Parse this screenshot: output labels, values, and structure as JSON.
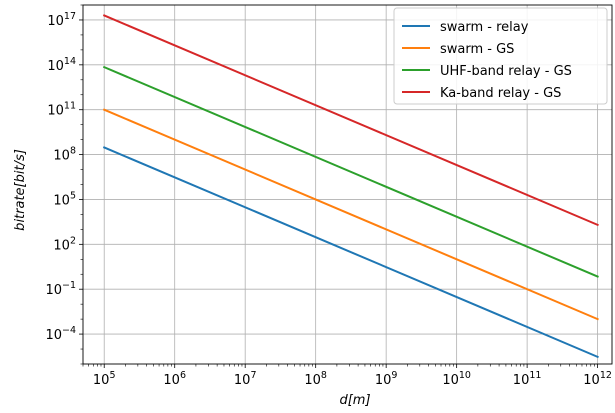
{
  "chart_data": {
    "type": "line",
    "x_scale": "log",
    "y_scale": "log",
    "xlabel": "d[m]",
    "ylabel": "bitrate[bit/s]",
    "xlim": [
      50000,
      1600000000000.0
    ],
    "ylim": [
      1e-06,
      1e+18
    ],
    "x_ticks": [
      {
        "base": "10",
        "exp": "5",
        "value": 100000.0
      },
      {
        "base": "10",
        "exp": "6",
        "value": 1000000.0
      },
      {
        "base": "10",
        "exp": "7",
        "value": 10000000.0
      },
      {
        "base": "10",
        "exp": "8",
        "value": 100000000.0
      },
      {
        "base": "10",
        "exp": "9",
        "value": 1000000000.0
      },
      {
        "base": "10",
        "exp": "10",
        "value": 10000000000.0
      },
      {
        "base": "10",
        "exp": "11",
        "value": 100000000000.0
      },
      {
        "base": "10",
        "exp": "12",
        "value": 1000000000000.0
      }
    ],
    "y_ticks": [
      {
        "base": "10",
        "exp": "−4",
        "value": 0.0001
      },
      {
        "base": "10",
        "exp": "−1",
        "value": 0.1
      },
      {
        "base": "10",
        "exp": "2",
        "value": 100.0
      },
      {
        "base": "10",
        "exp": "5",
        "value": 100000.0
      },
      {
        "base": "10",
        "exp": "8",
        "value": 100000000.0
      },
      {
        "base": "10",
        "exp": "11",
        "value": 100000000000.0
      },
      {
        "base": "10",
        "exp": "14",
        "value": 100000000000000.0
      },
      {
        "base": "10",
        "exp": "17",
        "value": 1e+17
      }
    ],
    "grid": true,
    "legend_position": "top-right",
    "series": [
      {
        "name": "swarm - relay",
        "color": "#1f77b4",
        "x": [
          100000.0,
          1000000000000.0
        ],
        "y": [
          300000000.0,
          3e-06
        ]
      },
      {
        "name": "swarm - GS",
        "color": "#ff7f0e",
        "x": [
          100000.0,
          1000000000000.0
        ],
        "y": [
          100000000000.0,
          0.001
        ]
      },
      {
        "name": "UHF-band relay - GS",
        "color": "#2ca02c",
        "x": [
          100000.0,
          1000000000000.0
        ],
        "y": [
          70000000000000.0,
          0.7
        ]
      },
      {
        "name": "Ka-band relay - GS",
        "color": "#d62728",
        "x": [
          100000.0,
          1000000000000.0
        ],
        "y": [
          2e+17,
          2000.0
        ]
      }
    ]
  }
}
